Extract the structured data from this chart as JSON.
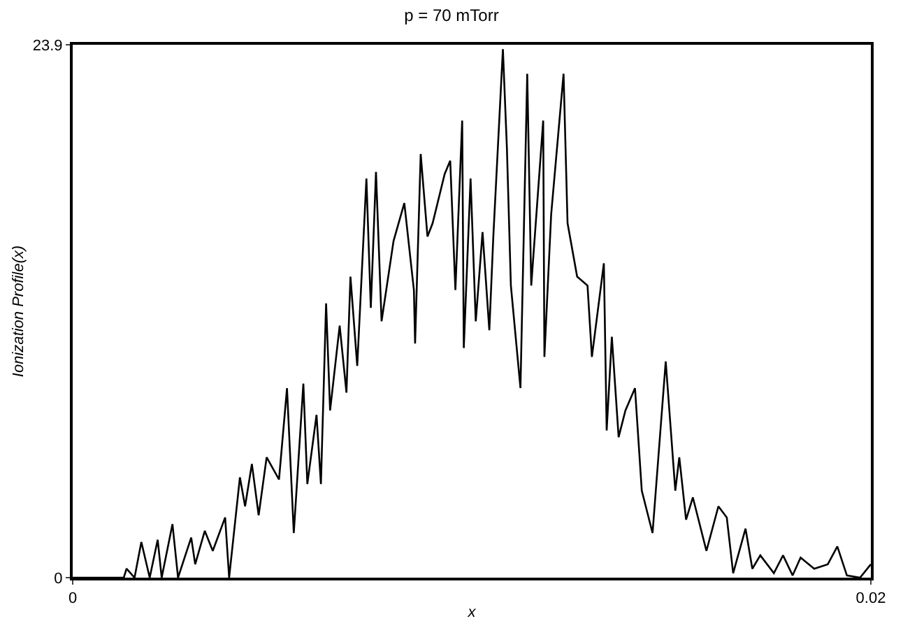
{
  "chart_data": {
    "type": "line",
    "title": "p = 70 mTorr",
    "xlabel": "x",
    "ylabel": "Ionization Profile(x)",
    "xlim": [
      0,
      0.02
    ],
    "xticks": [
      0,
      0.02
    ],
    "ylim": [
      0,
      23.9
    ],
    "yticks": [
      0,
      23.9
    ],
    "marker": "none",
    "line_style": "solid",
    "series": [
      {
        "color": "#000000",
        "x": [
          0,
          0.00128,
          0.00135,
          0.00155,
          0.00172,
          0.00193,
          0.00213,
          0.00223,
          0.0025,
          0.00264,
          0.00297,
          0.00307,
          0.00331,
          0.00351,
          0.00382,
          0.00392,
          0.00419,
          0.00432,
          0.00449,
          0.00466,
          0.00486,
          0.00517,
          0.00537,
          0.00554,
          0.00578,
          0.00588,
          0.00611,
          0.00622,
          0.00635,
          0.00645,
          0.00669,
          0.00686,
          0.00696,
          0.00713,
          0.00736,
          0.00747,
          0.0076,
          0.00774,
          0.00804,
          0.00831,
          0.00855,
          0.00858,
          0.00872,
          0.00889,
          0.00902,
          0.00932,
          0.00946,
          0.00959,
          0.00976,
          0.0098,
          0.00997,
          0.0101,
          0.01027,
          0.01044,
          0.01054,
          0.01078,
          0.01088,
          0.01098,
          0.01122,
          0.01139,
          0.01149,
          0.01179,
          0.01182,
          0.01199,
          0.0123,
          0.0124,
          0.01264,
          0.0129,
          0.01301,
          0.01331,
          0.01338,
          0.01351,
          0.01368,
          0.01385,
          0.01409,
          0.01426,
          0.01453,
          0.01486,
          0.0151,
          0.0152,
          0.01537,
          0.01554,
          0.01588,
          0.01618,
          0.01639,
          0.01655,
          0.01686,
          0.01703,
          0.01723,
          0.01757,
          0.0178,
          0.01804,
          0.01824,
          0.01858,
          0.01892,
          0.01916,
          0.0194,
          0.01973,
          0.02
        ],
        "values": [
          0,
          0,
          0.4,
          0,
          1.6,
          0,
          1.7,
          0,
          2.4,
          0,
          1.8,
          0.6,
          2.1,
          1.2,
          2.7,
          0,
          4.5,
          3.2,
          5.1,
          2.8,
          5.4,
          4.4,
          8.5,
          2.0,
          8.7,
          4.2,
          7.3,
          4.2,
          12.3,
          7.5,
          11.3,
          8.3,
          13.5,
          9.5,
          17.9,
          12.1,
          18.2,
          11.5,
          15.1,
          16.8,
          12.9,
          10.5,
          19.0,
          15.3,
          15.9,
          18.1,
          18.7,
          12.9,
          20.5,
          10.3,
          17.9,
          11.5,
          15.5,
          11.1,
          15.3,
          23.7,
          19.3,
          13.1,
          8.5,
          22.6,
          13.1,
          20.5,
          9.9,
          16.3,
          22.6,
          15.9,
          13.5,
          13.1,
          9.9,
          14.1,
          6.6,
          10.8,
          6.3,
          7.5,
          8.5,
          3.9,
          2.0,
          9.7,
          3.9,
          5.4,
          2.6,
          3.6,
          1.2,
          3.2,
          2.7,
          0.2,
          2.2,
          0.4,
          1.0,
          0.2,
          1.0,
          0.1,
          0.9,
          0.4,
          0.6,
          1.4,
          0.1,
          0,
          0.6
        ]
      }
    ]
  }
}
